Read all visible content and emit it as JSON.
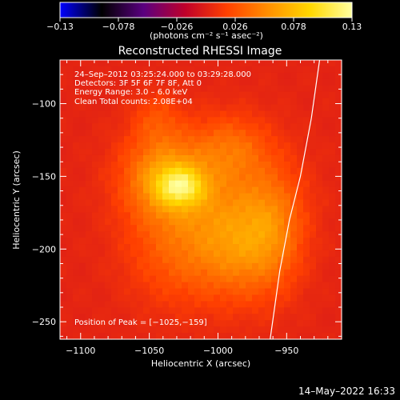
{
  "chart_data": {
    "type": "heatmap",
    "title": "Reconstructed RHESSI Image",
    "xlabel": "Heliocentric X (arcsec)",
    "ylabel": "Heliocentric Y (arcsec)",
    "xlim": [
      -1115,
      -910
    ],
    "ylim": [
      -262,
      -70
    ],
    "x_ticks": [
      {
        "value": -1100,
        "label": "−1100"
      },
      {
        "value": -1050,
        "label": "−1050"
      },
      {
        "value": -1000,
        "label": "−1000"
      },
      {
        "value": -950,
        "label": "−950"
      }
    ],
    "y_ticks": [
      {
        "value": -100,
        "label": "−100"
      },
      {
        "value": -150,
        "label": "−150"
      },
      {
        "value": -200,
        "label": "−200"
      },
      {
        "value": -250,
        "label": "−250"
      }
    ],
    "colorbar": {
      "min": -0.13,
      "max": 0.13,
      "tick_values": [
        -0.13,
        -0.078,
        -0.026,
        0.026,
        0.078,
        0.13
      ],
      "tick_labels": [
        "−0.13",
        "−0.078",
        "−0.026",
        "0.026",
        "0.078",
        "0.13"
      ],
      "units_label": "(photons cm⁻² s⁻¹ asec⁻²)",
      "colormap": [
        "#0000ff",
        "#000000",
        "#5a0080",
        "#c0002a",
        "#ff4000",
        "#ff9000",
        "#ffd800",
        "#ffffa0"
      ]
    },
    "info_lines": [
      "24–Sep–2012 03:25:24.000 to 03:29:28.000",
      "Detectors: 3F 5F 6F 7F 8F, Att 0",
      "Energy Range: 3.0 – 6.0 keV",
      "Clean    Total counts: 2.08E+04"
    ],
    "peak_label": "Position of Peak = [−1025,−159]",
    "peak": {
      "x": -1025,
      "y": -159
    },
    "limb_curve": [
      {
        "x": -926,
        "y": -70
      },
      {
        "x": -932,
        "y": -110
      },
      {
        "x": -940,
        "y": -150
      },
      {
        "x": -948,
        "y": -180
      },
      {
        "x": -955,
        "y": -215
      },
      {
        "x": -962,
        "y": -262
      }
    ],
    "sources": [
      {
        "x": -1027,
        "y": -157,
        "sx": 12,
        "sy": 9,
        "amp": 0.062
      },
      {
        "x": -1040,
        "y": -150,
        "sx": 20,
        "sy": 20,
        "amp": 0.048
      },
      {
        "x": -1005,
        "y": -165,
        "sx": 35,
        "sy": 30,
        "amp": 0.03
      },
      {
        "x": -985,
        "y": -200,
        "sx": 22,
        "sy": 25,
        "amp": 0.036
      },
      {
        "x": -990,
        "y": -130,
        "sx": 18,
        "sy": 15,
        "amp": 0.026
      },
      {
        "x": -960,
        "y": -185,
        "sx": 16,
        "sy": 28,
        "amp": 0.032
      },
      {
        "x": -1030,
        "y": -205,
        "sx": 25,
        "sy": 25,
        "amp": 0.022
      },
      {
        "x": -1045,
        "y": -110,
        "sx": 12,
        "sy": 12,
        "amp": 0.018
      }
    ],
    "footer_date": "14–May–2022 16:33"
  }
}
